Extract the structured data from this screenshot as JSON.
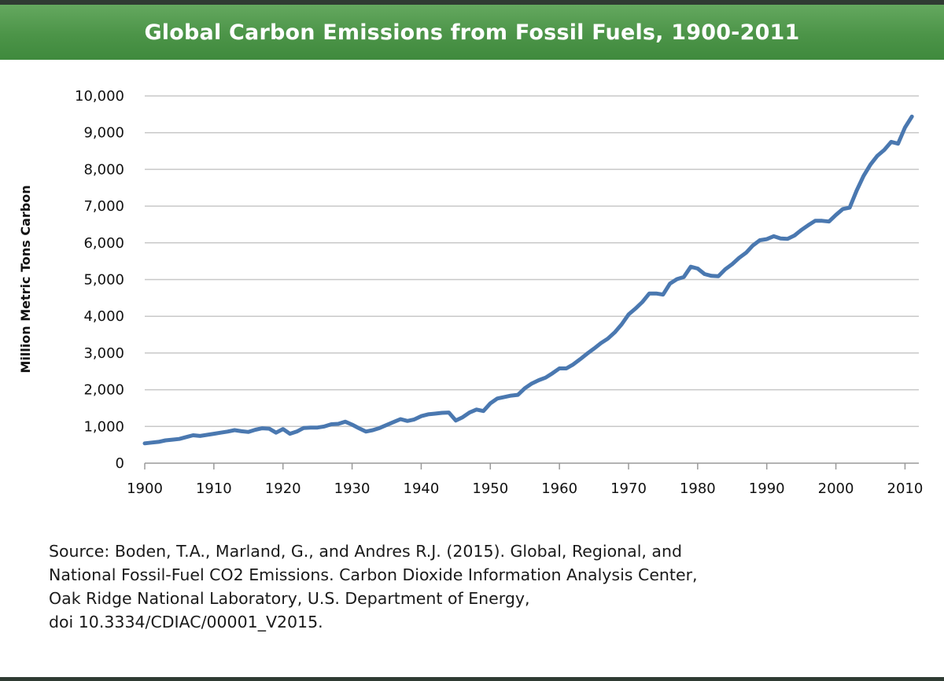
{
  "header": {
    "title": "Global Carbon Emissions from Fossil Fuels, 1900-2011"
  },
  "colors": {
    "header_green": "#4c9448",
    "line": "#4a78b0",
    "grid": "#c8c8c8"
  },
  "chart_data": {
    "type": "line",
    "title": "Global Carbon Emissions from Fossil Fuels, 1900-2011",
    "xlabel": "",
    "ylabel": "Million Metric Tons Carbon",
    "xlim": [
      1900,
      2012
    ],
    "ylim": [
      0,
      10000
    ],
    "grid": true,
    "x_ticks": [
      1900,
      1910,
      1920,
      1930,
      1940,
      1950,
      1960,
      1970,
      1980,
      1990,
      2000,
      2010
    ],
    "x_tick_labels": [
      "1900",
      "1910",
      "1920",
      "1930",
      "1940",
      "1950",
      "1960",
      "1970",
      "1980",
      "1990",
      "2000",
      "2010"
    ],
    "y_ticks": [
      0,
      1000,
      2000,
      3000,
      4000,
      5000,
      6000,
      7000,
      8000,
      9000,
      10000
    ],
    "y_tick_labels": [
      "0",
      "1,000",
      "2,000",
      "3,000",
      "4,000",
      "5,000",
      "6,000",
      "7,000",
      "8,000",
      "9,000",
      "10,000"
    ],
    "series": [
      {
        "x": [
          1900,
          1901,
          1902,
          1903,
          1904,
          1905,
          1906,
          1907,
          1908,
          1909,
          1910,
          1911,
          1912,
          1913,
          1914,
          1915,
          1916,
          1917,
          1918,
          1919,
          1920,
          1921,
          1922,
          1923,
          1924,
          1925,
          1926,
          1927,
          1928,
          1929,
          1930,
          1931,
          1932,
          1933,
          1934,
          1935,
          1936,
          1937,
          1938,
          1939,
          1940,
          1941,
          1942,
          1943,
          1944,
          1945,
          1946,
          1947,
          1948,
          1949,
          1950,
          1951,
          1952,
          1953,
          1954,
          1955,
          1956,
          1957,
          1958,
          1959,
          1960,
          1961,
          1962,
          1963,
          1964,
          1965,
          1966,
          1967,
          1968,
          1969,
          1970,
          1971,
          1972,
          1973,
          1974,
          1975,
          1976,
          1977,
          1978,
          1979,
          1980,
          1981,
          1982,
          1983,
          1984,
          1985,
          1986,
          1987,
          1988,
          1989,
          1990,
          1991,
          1992,
          1993,
          1994,
          1995,
          1996,
          1997,
          1998,
          1999,
          2000,
          2001,
          2002,
          2003,
          2004,
          2005,
          2006,
          2007,
          2008,
          2009,
          2010,
          2011
        ],
        "values": [
          540,
          560,
          580,
          620,
          640,
          660,
          710,
          760,
          740,
          770,
          800,
          830,
          860,
          900,
          870,
          850,
          910,
          950,
          940,
          830,
          930,
          800,
          860,
          960,
          970,
          970,
          1000,
          1060,
          1070,
          1130,
          1050,
          950,
          860,
          900,
          960,
          1040,
          1120,
          1200,
          1150,
          1190,
          1280,
          1330,
          1350,
          1370,
          1380,
          1160,
          1250,
          1380,
          1460,
          1420,
          1630,
          1760,
          1800,
          1840,
          1860,
          2040,
          2170,
          2260,
          2330,
          2450,
          2580,
          2580,
          2690,
          2830,
          2980,
          3120,
          3270,
          3390,
          3560,
          3780,
          4050,
          4210,
          4390,
          4620,
          4620,
          4590,
          4890,
          5010,
          5070,
          5350,
          5300,
          5150,
          5100,
          5090,
          5280,
          5420,
          5590,
          5730,
          5930,
          6070,
          6100,
          6180,
          6120,
          6110,
          6200,
          6350,
          6480,
          6600,
          6600,
          6580,
          6760,
          6920,
          6960,
          7420,
          7820,
          8130,
          8370,
          8530,
          8750,
          8700,
          9140,
          9440
        ]
      }
    ]
  },
  "source": {
    "line1": "Source: Boden, T.A., Marland, G., and Andres R.J. (2015). Global, Regional, and",
    "line2": "National Fossil-Fuel CO2 Emissions. Carbon Dioxide Information Analysis Center,",
    "line3": "Oak Ridge National Laboratory, U.S. Department of Energy,",
    "line4": "doi 10.3334/CDIAC/00001_V2015."
  }
}
